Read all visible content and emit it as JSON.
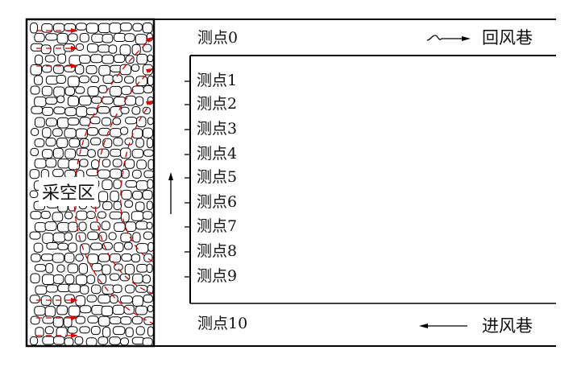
{
  "gob_label": "采空区",
  "points": [
    "测点0",
    "测点1",
    "测点2",
    "测点3",
    "测点4",
    "测点5",
    "测点6",
    "测点7",
    "测点8",
    "测点9",
    "测点10"
  ],
  "return_airway": {
    "label": "回风巷",
    "icon": "airflow-arrow-right-icon"
  },
  "intake_airway": {
    "label": "进风巷",
    "icon": "arrow-left-icon"
  },
  "colors": {
    "line": "#000000",
    "leak_path": "#e00000"
  }
}
